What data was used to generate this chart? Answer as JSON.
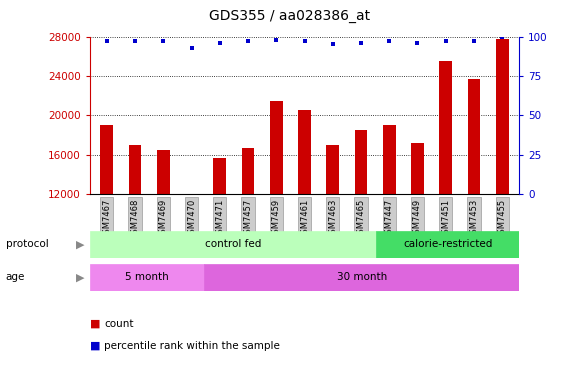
{
  "title": "GDS355 / aa028386_at",
  "samples": [
    "GSM7467",
    "GSM7468",
    "GSM7469",
    "GSM7470",
    "GSM7471",
    "GSM7457",
    "GSM7459",
    "GSM7461",
    "GSM7463",
    "GSM7465",
    "GSM7447",
    "GSM7449",
    "GSM7451",
    "GSM7453",
    "GSM7455"
  ],
  "counts": [
    19000,
    17000,
    16500,
    12000,
    15700,
    16700,
    21500,
    20500,
    17000,
    18500,
    19000,
    17200,
    25500,
    23700,
    27800
  ],
  "percentiles": [
    97,
    97,
    97,
    93,
    96,
    97,
    98,
    97,
    95,
    96,
    97,
    96,
    97,
    97,
    100
  ],
  "bar_color": "#cc0000",
  "dot_color": "#0000cc",
  "ylim_left": [
    12000,
    28000
  ],
  "ylim_right": [
    0,
    100
  ],
  "yticks_left": [
    12000,
    16000,
    20000,
    24000,
    28000
  ],
  "yticks_right": [
    0,
    25,
    50,
    75,
    100
  ],
  "grid_yticks": [
    16000,
    20000,
    24000,
    28000
  ],
  "background_color": "#ffffff",
  "protocol_groups": [
    {
      "label": "control fed",
      "start": 0,
      "end": 10,
      "color": "#bbffbb"
    },
    {
      "label": "calorie-restricted",
      "start": 10,
      "end": 15,
      "color": "#44dd66"
    }
  ],
  "age_groups": [
    {
      "label": "5 month",
      "start": 0,
      "end": 4,
      "color": "#ee88ee"
    },
    {
      "label": "30 month",
      "start": 4,
      "end": 15,
      "color": "#dd66dd"
    }
  ],
  "legend_count_color": "#cc0000",
  "legend_dot_color": "#0000cc",
  "legend_count_label": "count",
  "legend_dot_label": "percentile rank within the sample",
  "title_fontsize": 10,
  "tick_fontsize": 7.5,
  "xtick_bg": "#cccccc",
  "n_samples": 15,
  "bar_width": 0.45,
  "dot_size": 12
}
